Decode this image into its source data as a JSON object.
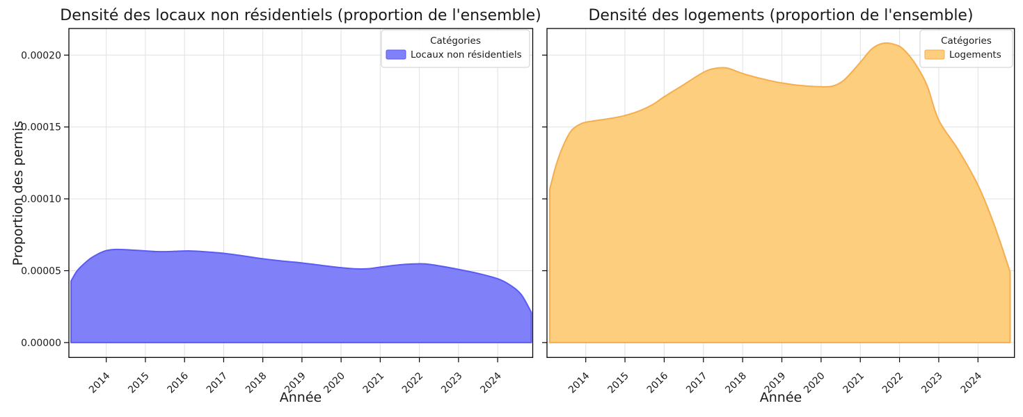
{
  "figure": {
    "background": "#ffffff",
    "grid_color": "#e0e0e0",
    "spine_color": "#000000"
  },
  "chart_data": [
    {
      "type": "area",
      "title": "Densité des locaux non résidentiels (proportion de l'ensemble)",
      "xlabel": "Année",
      "ylabel": "Proportion des permis",
      "grid": true,
      "xlim": [
        2013.04,
        2024.9
      ],
      "ylim": [
        -1.04e-05,
        0.00021872
      ],
      "x_ticks": [
        "2014",
        "2015",
        "2016",
        "2017",
        "2018",
        "2019",
        "2020",
        "2021",
        "2022",
        "2023",
        "2024"
      ],
      "y_ticks": [
        "0.00000",
        "0.00005",
        "0.00010",
        "0.00015",
        "0.00020"
      ],
      "y_tick_values": [
        0.0,
        5e-05,
        0.0001,
        0.00015,
        0.0002
      ],
      "legend": {
        "title": "Catégories",
        "position": "upper right",
        "entries": [
          {
            "label": "Locaux non résidentiels",
            "fill": "#8080f8",
            "edge": "#5a5af5"
          }
        ]
      },
      "series": [
        {
          "name": "Locaux non résidentiels",
          "fill": "#8080f8",
          "edge": "#5a5af5",
          "points": [
            [
              2013.1,
              4.28e-05
            ],
            [
              2013.25,
              4.97e-05
            ],
            [
              2013.42,
              5.45e-05
            ],
            [
              2013.6,
              5.86e-05
            ],
            [
              2013.8,
              6.18e-05
            ],
            [
              2014.0,
              6.4e-05
            ],
            [
              2014.25,
              6.48e-05
            ],
            [
              2014.5,
              6.46e-05
            ],
            [
              2014.75,
              6.42e-05
            ],
            [
              2015.0,
              6.38e-05
            ],
            [
              2015.3,
              6.33e-05
            ],
            [
              2015.6,
              6.33e-05
            ],
            [
              2015.85,
              6.36e-05
            ],
            [
              2016.1,
              6.38e-05
            ],
            [
              2016.4,
              6.34e-05
            ],
            [
              2016.7,
              6.28e-05
            ],
            [
              2017.0,
              6.21e-05
            ],
            [
              2017.5,
              6.03e-05
            ],
            [
              2018.0,
              5.83e-05
            ],
            [
              2018.5,
              5.67e-05
            ],
            [
              2019.0,
              5.54e-05
            ],
            [
              2019.5,
              5.37e-05
            ],
            [
              2020.0,
              5.21e-05
            ],
            [
              2020.35,
              5.13e-05
            ],
            [
              2020.7,
              5.14e-05
            ],
            [
              2021.0,
              5.25e-05
            ],
            [
              2021.5,
              5.41e-05
            ],
            [
              2021.85,
              5.47e-05
            ],
            [
              2022.15,
              5.47e-05
            ],
            [
              2022.5,
              5.34e-05
            ],
            [
              2023.0,
              5.09e-05
            ],
            [
              2023.5,
              4.81e-05
            ],
            [
              2024.0,
              4.44e-05
            ],
            [
              2024.3,
              4.03e-05
            ],
            [
              2024.6,
              3.35e-05
            ],
            [
              2024.86,
              2.1e-05
            ]
          ]
        }
      ]
    },
    {
      "type": "area",
      "title": "Densité des logements (proportion de l'ensemble)",
      "xlabel": "Année",
      "ylabel": "",
      "grid": true,
      "xlim": [
        2013.01,
        2024.92
      ],
      "ylim": [
        -1.04e-05,
        0.00021872
      ],
      "x_ticks": [
        "2014",
        "2015",
        "2016",
        "2017",
        "2018",
        "2019",
        "2020",
        "2021",
        "2022",
        "2023",
        "2024"
      ],
      "y_ticks": [],
      "y_tick_values": [
        0.0,
        5e-05,
        0.0001,
        0.00015,
        0.0002
      ],
      "legend": {
        "title": "Catégories",
        "position": "upper right",
        "entries": [
          {
            "label": "Logements",
            "fill": "#fcce7e",
            "edge": "#f5ad4d"
          }
        ]
      },
      "series": [
        {
          "name": "Logements",
          "fill": "#fcce7e",
          "edge": "#f5ad4d",
          "points": [
            [
              2013.08,
              0.0001065
            ],
            [
              2013.25,
              0.000124
            ],
            [
              2013.45,
              0.0001385
            ],
            [
              2013.65,
              0.000148
            ],
            [
              2013.9,
              0.0001525
            ],
            [
              2014.15,
              0.000154
            ],
            [
              2014.45,
              0.0001552
            ],
            [
              2014.75,
              0.0001565
            ],
            [
              2015.0,
              0.000158
            ],
            [
              2015.35,
              0.000161
            ],
            [
              2015.7,
              0.0001655
            ],
            [
              2016.0,
              0.000171
            ],
            [
              2016.5,
              0.0001795
            ],
            [
              2017.0,
              0.000188
            ],
            [
              2017.3,
              0.0001908
            ],
            [
              2017.6,
              0.000191
            ],
            [
              2018.0,
              0.0001872
            ],
            [
              2018.5,
              0.0001835
            ],
            [
              2019.0,
              0.0001806
            ],
            [
              2019.5,
              0.0001788
            ],
            [
              2020.0,
              0.000178
            ],
            [
              2020.3,
              0.0001785
            ],
            [
              2020.6,
              0.000183
            ],
            [
              2021.0,
              0.000195
            ],
            [
              2021.3,
              0.0002045
            ],
            [
              2021.6,
              0.0002083
            ],
            [
              2021.9,
              0.0002072
            ],
            [
              2022.1,
              0.000204
            ],
            [
              2022.4,
              0.000194
            ],
            [
              2022.7,
              0.000179
            ],
            [
              2023.0,
              0.0001548
            ],
            [
              2023.5,
              0.000134
            ],
            [
              2024.0,
              0.0001095
            ],
            [
              2024.4,
              8.3e-05
            ],
            [
              2024.82,
              4.92e-05
            ]
          ]
        }
      ]
    }
  ]
}
